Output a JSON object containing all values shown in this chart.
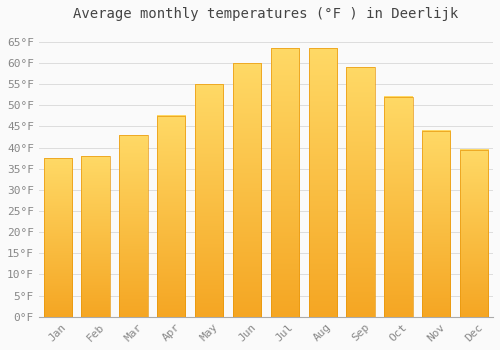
{
  "title": "Average monthly temperatures (°F ) in Deerlijk",
  "months": [
    "Jan",
    "Feb",
    "Mar",
    "Apr",
    "May",
    "Jun",
    "Jul",
    "Aug",
    "Sep",
    "Oct",
    "Nov",
    "Dec"
  ],
  "values": [
    37.5,
    38.0,
    43.0,
    47.5,
    55.0,
    60.0,
    63.5,
    63.5,
    59.0,
    52.0,
    44.0,
    39.5
  ],
  "bar_color_bottom": "#F5A623",
  "bar_color_top": "#FFD966",
  "bar_edge_color": "#E8960A",
  "background_color": "#FAFAFA",
  "grid_color": "#DDDDDD",
  "text_color": "#888888",
  "ylim": [
    0,
    68
  ],
  "yticks": [
    0,
    5,
    10,
    15,
    20,
    25,
    30,
    35,
    40,
    45,
    50,
    55,
    60,
    65
  ],
  "title_fontsize": 10,
  "tick_fontsize": 8,
  "title_font": "monospace"
}
